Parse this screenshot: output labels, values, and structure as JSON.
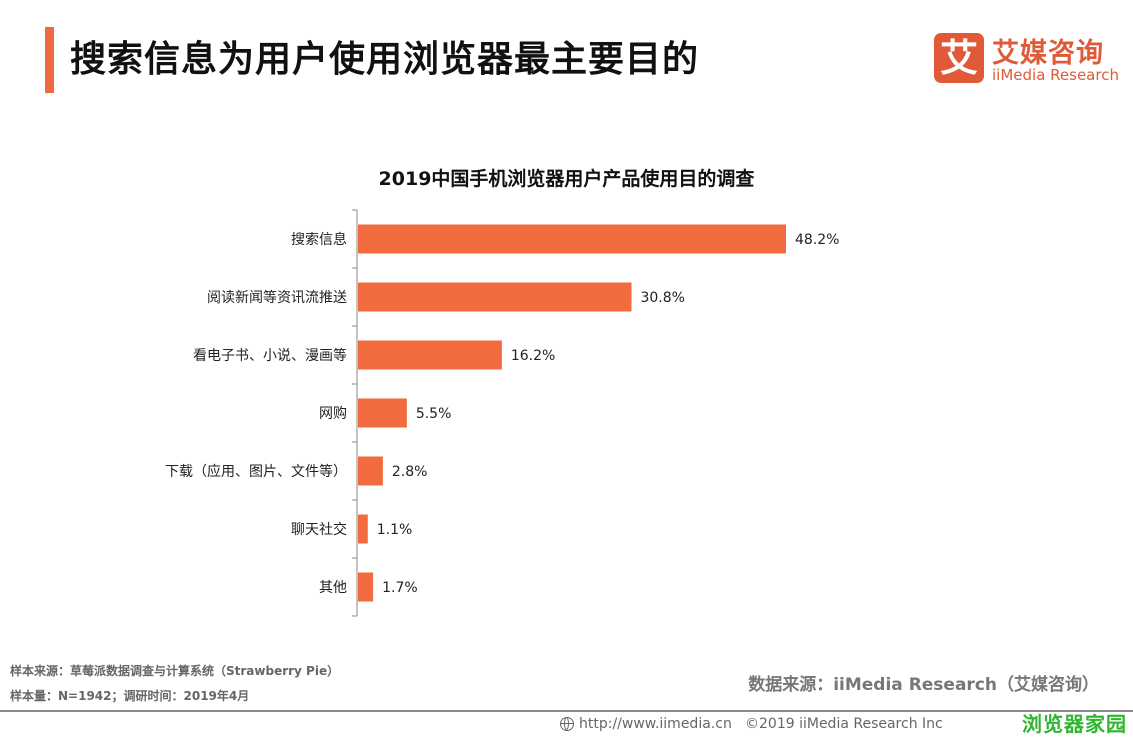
{
  "header": {
    "title": "搜索信息为用户使用浏览器最主要目的",
    "accent_color": "#ef6a3c"
  },
  "logo": {
    "mark": "艾",
    "name_cn": "艾媒咨询",
    "name_en": "iiMedia Research",
    "color": "#e05a3a"
  },
  "chart_data": {
    "type": "bar",
    "orientation": "horizontal",
    "title": "2019中国手机浏览器用户产品使用目的调查",
    "categories": [
      "搜索信息",
      "阅读新闻等资讯流推送",
      "看电子书、小说、漫画等",
      "网购",
      "下载（应用、图片、文件等）",
      "聊天社交",
      "其他"
    ],
    "values": [
      48.2,
      30.8,
      16.2,
      5.5,
      2.8,
      1.1,
      1.7
    ],
    "value_labels": [
      "48.2%",
      "30.8%",
      "16.2%",
      "5.5%",
      "2.8%",
      "1.1%",
      "1.7%"
    ],
    "unit": "%",
    "xlabel": "",
    "ylabel": "",
    "xlim": [
      0,
      50
    ],
    "grid": false,
    "legend": "none",
    "bar_color": "#f26b3e"
  },
  "footer": {
    "sample_source": "样本来源：草莓派数据调查与计算系统（Strawberry Pie）",
    "sample_size": "样本量：N=1942；调研时间：2019年4月",
    "data_source": "数据来源：iiMedia Research（艾媒咨询）",
    "url": "http://www.iimedia.cn",
    "copyright": "©2019  iiMedia Research  Inc",
    "watermark": "浏览器家园"
  }
}
